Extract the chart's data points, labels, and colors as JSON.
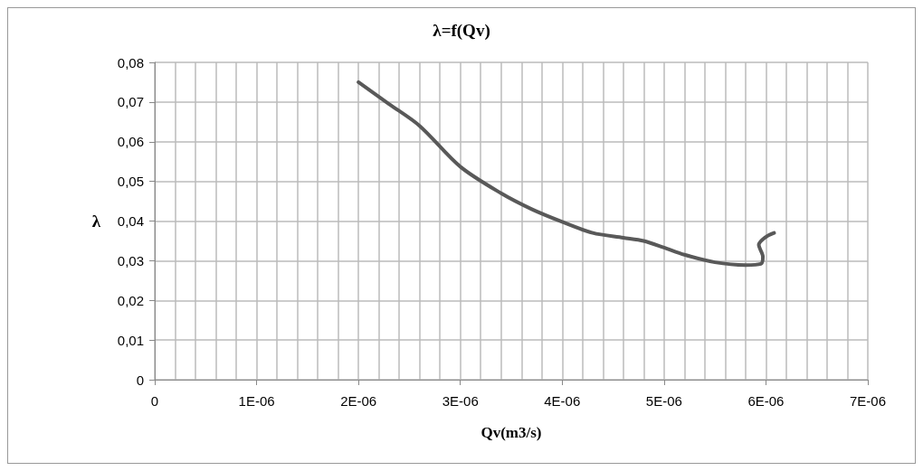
{
  "chart_data": {
    "type": "line",
    "title": "λ=f(Qv)",
    "xlabel": "Qv(m3/s)",
    "ylabel": "λ",
    "x": [
      2e-06,
      2.3e-06,
      2.6e-06,
      3e-06,
      3.4e-06,
      3.7e-06,
      4e-06,
      4.3e-06,
      4.6e-06,
      4.8e-06,
      5e-06,
      5.2e-06,
      5.5e-06,
      5.8e-06,
      5.95e-06,
      5.97e-06,
      5.93e-06,
      6e-06,
      6.08e-06
    ],
    "series": [
      {
        "color": "#595959",
        "values": [
          0.075,
          0.0695,
          0.064,
          0.0537,
          0.047,
          0.043,
          0.0398,
          0.037,
          0.0358,
          0.035,
          0.0333,
          0.0315,
          0.0296,
          0.0289,
          0.0292,
          0.031,
          0.034,
          0.036,
          0.037
        ]
      }
    ],
    "xlim": [
      0,
      7e-06
    ],
    "xticks": [
      {
        "value": 0,
        "label": "0"
      },
      {
        "value": 1e-06,
        "label": "1E-06"
      },
      {
        "value": 2e-06,
        "label": "2E-06"
      },
      {
        "value": 3e-06,
        "label": "3E-06"
      },
      {
        "value": 4e-06,
        "label": "4E-06"
      },
      {
        "value": 5e-06,
        "label": "5E-06"
      },
      {
        "value": 6e-06,
        "label": "6E-06"
      },
      {
        "value": 7e-06,
        "label": "7E-06"
      }
    ],
    "ylim": [
      0,
      0.08
    ],
    "yticks": [
      {
        "value": 0,
        "label": "0"
      },
      {
        "value": 0.01,
        "label": "0,01"
      },
      {
        "value": 0.02,
        "label": "0,02"
      },
      {
        "value": 0.03,
        "label": "0,03"
      },
      {
        "value": 0.04,
        "label": "0,04"
      },
      {
        "value": 0.05,
        "label": "0,05"
      },
      {
        "value": 0.06,
        "label": "0,06"
      },
      {
        "value": 0.07,
        "label": "0,07"
      },
      {
        "value": 0.08,
        "label": "0,08"
      }
    ],
    "grid": true,
    "marker": "none",
    "line_style": "solid"
  }
}
